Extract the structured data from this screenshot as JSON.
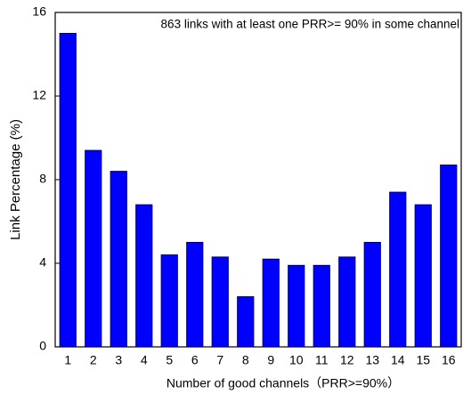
{
  "chart_data": {
    "type": "bar",
    "annotation": "863 links with at least one PRR>= 90% in some channel",
    "x_label": "Number of good channels（PRR>=90%）",
    "y_label": "Link Percentage (%)",
    "categories": [
      "1",
      "2",
      "3",
      "4",
      "5",
      "6",
      "7",
      "8",
      "9",
      "10",
      "11",
      "12",
      "13",
      "14",
      "15",
      "16"
    ],
    "values": [
      15,
      9.4,
      8.4,
      6.8,
      4.4,
      5.0,
      4.3,
      2.4,
      4.2,
      3.9,
      3.9,
      4.3,
      5.0,
      7.4,
      6.8,
      8.7
    ],
    "color": "#0000ff",
    "ylim": [
      0,
      16
    ],
    "yticks": [
      0,
      4,
      8,
      12,
      16
    ],
    "grid": false
  }
}
